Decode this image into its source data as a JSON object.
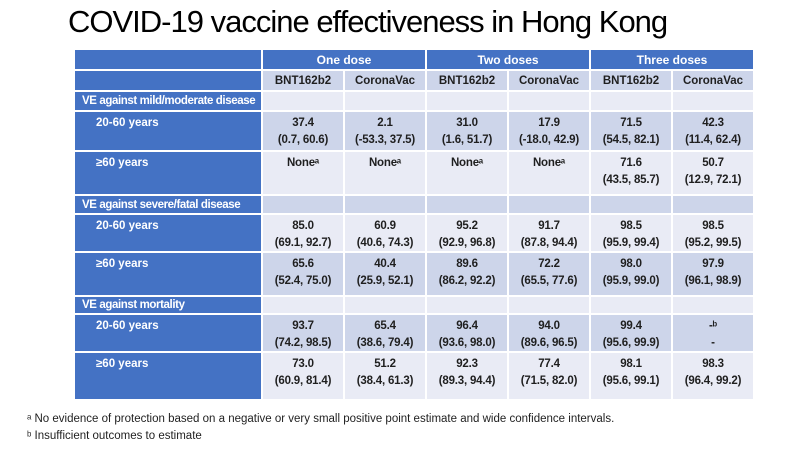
{
  "title": "COVID-19 vaccine effectiveness in Hong Kong",
  "colors": {
    "header_blue": "#4472C4",
    "band_dark": "#CDD5EA",
    "band_light": "#E9EBF5",
    "text_dark": "#1F1F1F"
  },
  "table": {
    "dose_groups": [
      "One dose",
      "Two doses",
      "Three doses"
    ],
    "vaccines": [
      "BNT162b2",
      "CoronaVac",
      "BNT162b2",
      "CoronaVac",
      "BNT162b2",
      "CoronaVac"
    ],
    "rows": [
      {
        "type": "section",
        "label": "VE against mild/moderate disease",
        "cells": []
      },
      {
        "type": "data",
        "label": "20-60 years",
        "cells": [
          [
            "37.4",
            "(0.7, 60.6)"
          ],
          [
            "2.1",
            "(-53.3, 37.5)"
          ],
          [
            "31.0",
            "(1.6, 51.7)"
          ],
          [
            "17.9",
            "(-18.0, 42.9)"
          ],
          [
            "71.5",
            "(54.5, 82.1)"
          ],
          [
            "42.3",
            "(11.4, 62.4)"
          ]
        ]
      },
      {
        "type": "data",
        "label": "≥60 years",
        "cells": [
          [
            "Noneᵃ"
          ],
          [
            "Noneᵃ"
          ],
          [
            "Noneᵃ"
          ],
          [
            "Noneᵃ"
          ],
          [
            "71.6",
            "(43.5, 85.7)"
          ],
          [
            "50.7",
            "(12.9, 72.1)"
          ]
        ]
      },
      {
        "type": "section",
        "label": "VE against severe/fatal disease",
        "cells": []
      },
      {
        "type": "data",
        "label": "20-60 years",
        "cells": [
          [
            "85.0",
            "(69.1, 92.7)"
          ],
          [
            "60.9",
            "(40.6, 74.3)"
          ],
          [
            "95.2",
            "(92.9, 96.8)"
          ],
          [
            "91.7",
            "(87.8, 94.4)"
          ],
          [
            "98.5",
            "(95.9, 99.4)"
          ],
          [
            "98.5",
            "(95.2, 99.5)"
          ]
        ]
      },
      {
        "type": "data",
        "label": "≥60 years",
        "cells": [
          [
            "65.6",
            "(52.4, 75.0)"
          ],
          [
            "40.4",
            "(25.9, 52.1)"
          ],
          [
            "89.6",
            "(86.2, 92.2)"
          ],
          [
            "72.2",
            "(65.5, 77.6)"
          ],
          [
            "98.0",
            "(95.9, 99.0)"
          ],
          [
            "97.9",
            "(96.1, 98.9)"
          ]
        ]
      },
      {
        "type": "section",
        "label": "VE against mortality",
        "cells": []
      },
      {
        "type": "data",
        "label": "20-60 years",
        "cells": [
          [
            "93.7",
            "(74.2, 98.5)"
          ],
          [
            "65.4",
            "(38.6, 79.4)"
          ],
          [
            "96.4",
            "(93.6, 98.0)"
          ],
          [
            "94.0",
            "(89.6, 96.5)"
          ],
          [
            "99.4",
            "(95.6, 99.9)"
          ],
          [
            "-ᵇ",
            "-"
          ]
        ]
      },
      {
        "type": "data",
        "label": "≥60 years",
        "cells": [
          [
            "73.0",
            "(60.9, 81.4)"
          ],
          [
            "51.2",
            "(38.4, 61.3)"
          ],
          [
            "92.3",
            "(89.3, 94.4)"
          ],
          [
            "77.4",
            "(71.5, 82.0)"
          ],
          [
            "98.1",
            "(95.6, 99.1)"
          ],
          [
            "98.3",
            "(96.4, 99.2)"
          ]
        ]
      }
    ]
  },
  "footnotes": [
    "ᵃ No evidence of protection based on a negative or very small positive point estimate and wide confidence intervals.",
    "ᵇ Insufficient outcomes to estimate"
  ]
}
